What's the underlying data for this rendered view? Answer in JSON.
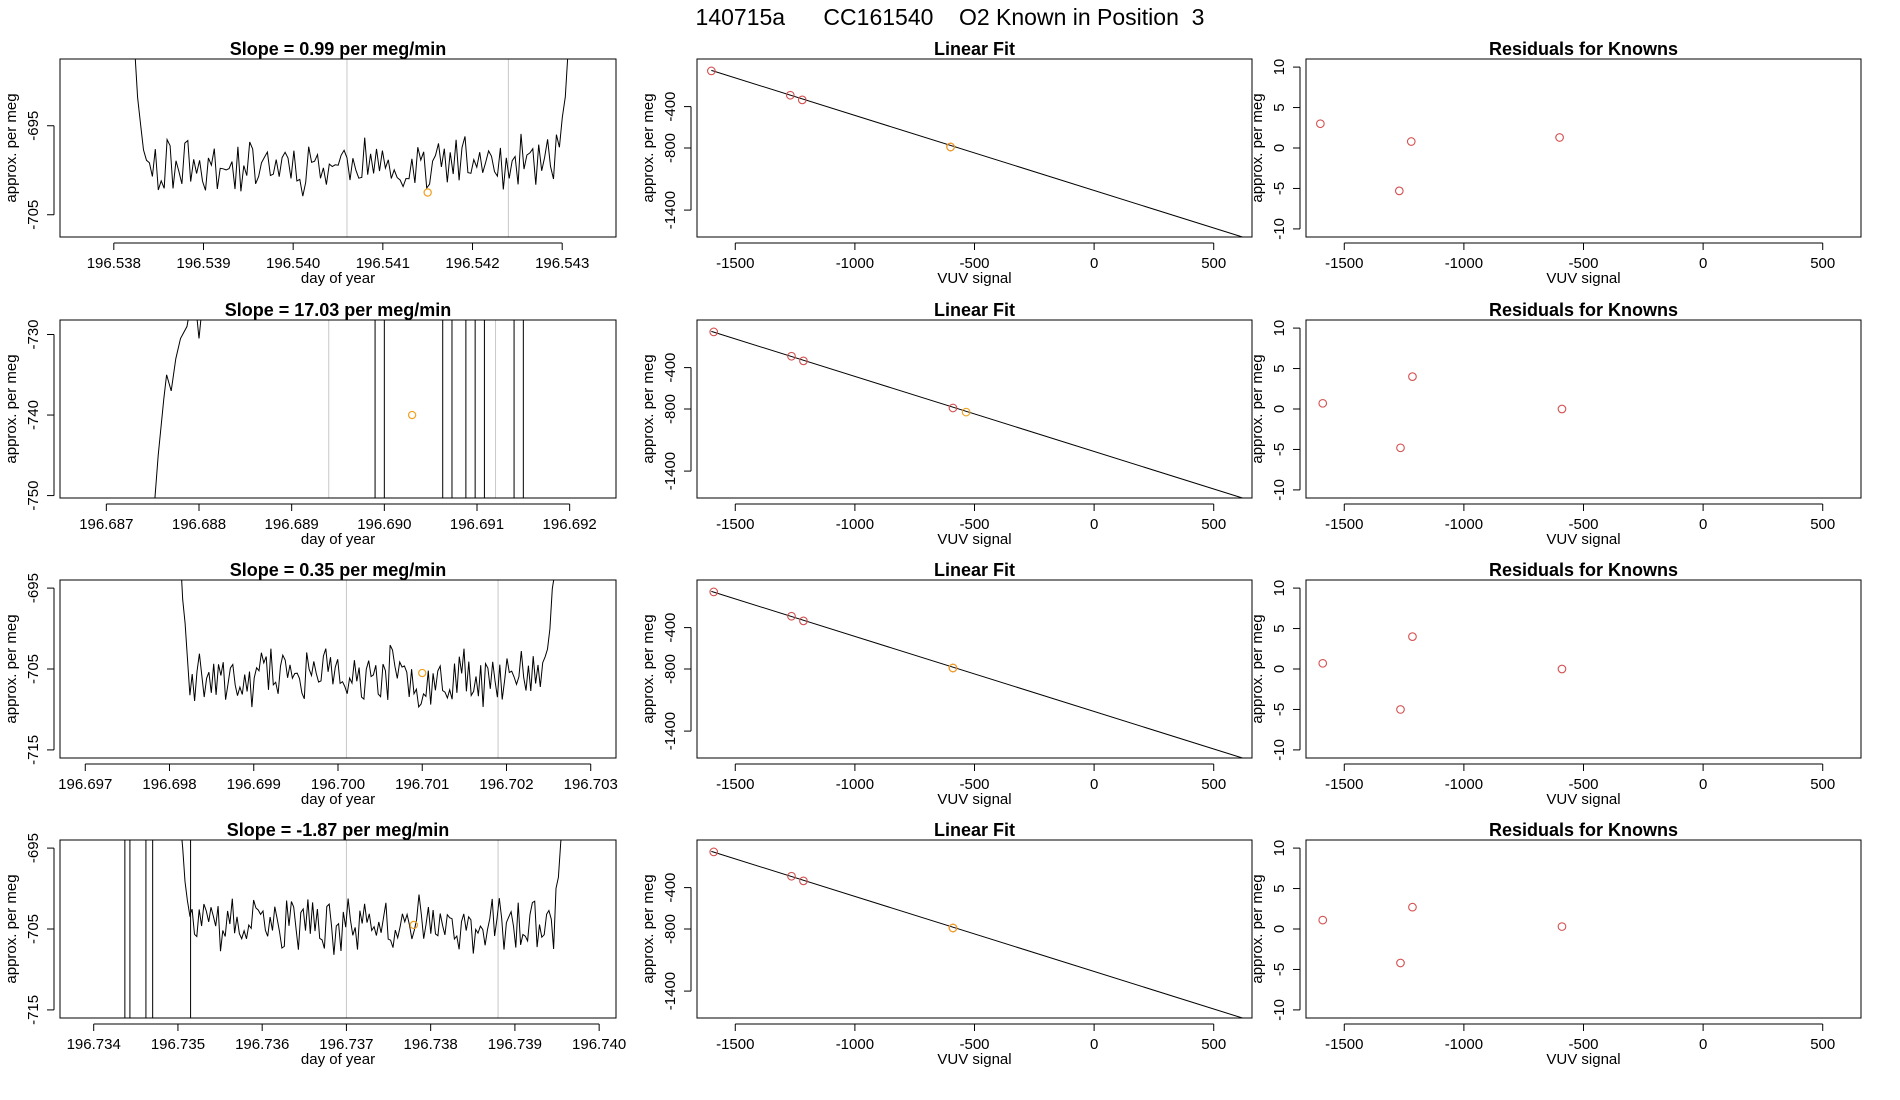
{
  "figure": {
    "title": "140715a      CC161540    O2 Known in Position  3",
    "colors": {
      "line": "#000000",
      "vline": "#c8c8c8",
      "known": "#d45050",
      "sample": "#f0a020",
      "frame": "#000000"
    }
  },
  "chart_data": [
    {
      "type": "line",
      "row": 0,
      "col": 0,
      "title": "Slope =  0.99  per meg/min",
      "xlabel": "day of year",
      "ylabel": "approx. per meg",
      "xlim": [
        196.5374,
        196.5436
      ],
      "ylim": [
        -707.5,
        -687.5
      ],
      "xticks": [
        196.538,
        196.539,
        196.54,
        196.541,
        196.542,
        196.543
      ],
      "xticklabels": [
        "196.538",
        "196.539",
        "196.540",
        "196.541",
        "196.542",
        "196.543"
      ],
      "yticks": [
        -695,
        -705
      ],
      "yticklabels": [
        "-695",
        "-705"
      ],
      "series": [
        {
          "name": "trace",
          "t0": 196.5382,
          "t1": 196.5431,
          "points": 150,
          "mean": -699.4,
          "amp": 2.6,
          "seed": 11,
          "spike_count": 0,
          "edge_rise": true
        }
      ],
      "vlines": [
        196.5406,
        196.5424
      ],
      "sample_point": [
        196.5415,
        -702.5
      ]
    },
    {
      "type": "scatter",
      "row": 0,
      "col": 1,
      "title": "Linear Fit",
      "xlabel": "VUV signal",
      "ylabel": "approx. per meg",
      "xlim": [
        -1660,
        660
      ],
      "ylim": [
        -1660,
        60
      ],
      "xticks": [
        -1500,
        -1000,
        -500,
        0,
        500
      ],
      "xticklabels": [
        "-1500",
        "-1000",
        "-500",
        "0",
        "500"
      ],
      "yticks": [
        -400,
        -800,
        -1400
      ],
      "yticklabels": [
        "-400",
        "-800",
        "-1400"
      ],
      "fit_line": {
        "x": [
          -1600,
          620
        ],
        "y": [
          -50,
          -1660
        ]
      },
      "knowns": [
        {
          "x": -1600,
          "y": -55
        },
        {
          "x": -1270,
          "y": -290
        },
        {
          "x": -1220,
          "y": -335
        },
        {
          "x": -600,
          "y": -790
        }
      ],
      "sample": {
        "x": -600,
        "y": -790
      }
    },
    {
      "type": "scatter",
      "row": 0,
      "col": 2,
      "title": "Residuals for Knowns",
      "xlabel": "VUV signal",
      "ylabel": "approx. per meg",
      "xlim": [
        -1660,
        660
      ],
      "ylim": [
        -11,
        11
      ],
      "xticks": [
        -1500,
        -1000,
        -500,
        0,
        500
      ],
      "xticklabels": [
        "-1500",
        "-1000",
        "-500",
        "0",
        "500"
      ],
      "yticks": [
        10,
        5,
        0,
        -5,
        -10
      ],
      "yticklabels": [
        "10",
        "5",
        "0",
        "-5",
        "-10"
      ],
      "points": [
        {
          "x": -1600,
          "y": 3.0
        },
        {
          "x": -1270,
          "y": -5.3
        },
        {
          "x": -1220,
          "y": 0.8
        },
        {
          "x": -600,
          "y": 1.3
        }
      ]
    },
    {
      "type": "line",
      "row": 1,
      "col": 0,
      "title": "Slope =  17.03  per meg/min",
      "xlabel": "day of year",
      "ylabel": "approx. per meg",
      "xlim": [
        196.6865,
        196.6925
      ],
      "ylim": [
        -750.3,
        -728.2
      ],
      "xticks": [
        196.687,
        196.688,
        196.689,
        196.69,
        196.691,
        196.692
      ],
      "xticklabels": [
        "196.687",
        "196.688",
        "196.689",
        "196.690",
        "196.691",
        "196.692"
      ],
      "yticks": [
        -730,
        -740,
        -750
      ],
      "yticklabels": [
        "-730",
        "-740",
        "-750"
      ],
      "segments": [
        [
          [
            196.68752,
            -751
          ],
          [
            196.68756,
            -745
          ],
          [
            196.68762,
            -738
          ],
          [
            196.68765,
            -735
          ],
          [
            196.6877,
            -737
          ],
          [
            196.68775,
            -733
          ],
          [
            196.6878,
            -730.5
          ],
          [
            196.68787,
            -729
          ],
          [
            196.6879,
            -727
          ]
        ],
        [
          [
            196.68797,
            -727
          ],
          [
            196.688,
            -730.5
          ],
          [
            196.68803,
            -727
          ]
        ]
      ],
      "spikes": [
        196.6899,
        196.69,
        196.69063,
        196.69073,
        196.69088,
        196.69098,
        196.69108,
        196.6914,
        196.6915
      ],
      "spike_to": [
        -751,
        -727
      ],
      "vlines": [
        196.6894,
        196.6912
      ],
      "sample_point": [
        196.6903,
        -740.0
      ]
    },
    {
      "type": "scatter",
      "row": 1,
      "col": 1,
      "title": "Linear Fit",
      "xlabel": "VUV signal",
      "ylabel": "approx. per meg",
      "xlim": [
        -1660,
        660
      ],
      "ylim": [
        -1660,
        60
      ],
      "xticks": [
        -1500,
        -1000,
        -500,
        0,
        500
      ],
      "xticklabels": [
        "-1500",
        "-1000",
        "-500",
        "0",
        "500"
      ],
      "yticks": [
        -400,
        -800,
        -1400
      ],
      "yticklabels": [
        "-400",
        "-800",
        "-1400"
      ],
      "fit_line": {
        "x": [
          -1600,
          620
        ],
        "y": [
          -50,
          -1660
        ]
      },
      "knowns": [
        {
          "x": -1590,
          "y": -55
        },
        {
          "x": -1265,
          "y": -290
        },
        {
          "x": -1215,
          "y": -335
        },
        {
          "x": -590,
          "y": -790
        }
      ],
      "sample": {
        "x": -535,
        "y": -830
      }
    },
    {
      "type": "scatter",
      "row": 1,
      "col": 2,
      "title": "Residuals for Knowns",
      "xlabel": "VUV signal",
      "ylabel": "approx. per meg",
      "xlim": [
        -1660,
        660
      ],
      "ylim": [
        -11,
        11
      ],
      "xticks": [
        -1500,
        -1000,
        -500,
        0,
        500
      ],
      "xticklabels": [
        "-1500",
        "-1000",
        "-500",
        "0",
        "500"
      ],
      "yticks": [
        10,
        5,
        0,
        -5,
        -10
      ],
      "yticklabels": [
        "10",
        "5",
        "0",
        "-5",
        "-10"
      ],
      "points": [
        {
          "x": -1590,
          "y": 0.7
        },
        {
          "x": -1265,
          "y": -4.8
        },
        {
          "x": -1215,
          "y": 4.0
        },
        {
          "x": -590,
          "y": 0.0
        }
      ]
    },
    {
      "type": "line",
      "row": 2,
      "col": 0,
      "title": "Slope =  0.35  per meg/min",
      "xlabel": "day of year",
      "ylabel": "approx. per meg",
      "xlim": [
        196.6967,
        196.7033
      ],
      "ylim": [
        -716,
        -694
      ],
      "xticks": [
        196.697,
        196.698,
        196.699,
        196.7,
        196.701,
        196.702,
        196.703
      ],
      "xticklabels": [
        "196.697",
        "196.698",
        "196.699",
        "196.700",
        "196.701",
        "196.702",
        "196.703"
      ],
      "yticks": [
        -695,
        -705,
        -715
      ],
      "yticklabels": [
        "-695",
        "-705",
        "-715"
      ],
      "series": [
        {
          "name": "trace",
          "t0": 196.6981,
          "t1": 196.7026,
          "points": 160,
          "mean": -706.0,
          "amp": 3.0,
          "seed": 23,
          "spike_count": 0,
          "edge_rise": true
        }
      ],
      "vlines": [
        196.7001,
        196.7019
      ],
      "sample_point": [
        196.701,
        -705.5
      ]
    },
    {
      "type": "scatter",
      "row": 2,
      "col": 1,
      "title": "Linear Fit",
      "xlabel": "VUV signal",
      "ylabel": "approx. per meg",
      "xlim": [
        -1660,
        660
      ],
      "ylim": [
        -1660,
        60
      ],
      "xticks": [
        -1500,
        -1000,
        -500,
        0,
        500
      ],
      "xticklabels": [
        "-1500",
        "-1000",
        "-500",
        "0",
        "500"
      ],
      "yticks": [
        -400,
        -800,
        -1400
      ],
      "yticklabels": [
        "-400",
        "-800",
        "-1400"
      ],
      "fit_line": {
        "x": [
          -1600,
          620
        ],
        "y": [
          -50,
          -1660
        ]
      },
      "knowns": [
        {
          "x": -1590,
          "y": -55
        },
        {
          "x": -1265,
          "y": -290
        },
        {
          "x": -1215,
          "y": -335
        },
        {
          "x": -590,
          "y": -790
        }
      ],
      "sample": {
        "x": -590,
        "y": -790
      }
    },
    {
      "type": "scatter",
      "row": 2,
      "col": 2,
      "title": "Residuals for Knowns",
      "xlabel": "VUV signal",
      "ylabel": "approx. per meg",
      "xlim": [
        -1660,
        660
      ],
      "ylim": [
        -11,
        11
      ],
      "xticks": [
        -1500,
        -1000,
        -500,
        0,
        500
      ],
      "xticklabels": [
        "-1500",
        "-1000",
        "-500",
        "0",
        "500"
      ],
      "yticks": [
        10,
        5,
        0,
        -5,
        -10
      ],
      "yticklabels": [
        "10",
        "5",
        "0",
        "-5",
        "-10"
      ],
      "points": [
        {
          "x": -1590,
          "y": 0.7
        },
        {
          "x": -1265,
          "y": -5.0
        },
        {
          "x": -1215,
          "y": 4.0
        },
        {
          "x": -590,
          "y": 0.0
        }
      ]
    },
    {
      "type": "line",
      "row": 3,
      "col": 0,
      "title": "Slope =  -1.87  per meg/min",
      "xlabel": "day of year",
      "ylabel": "approx. per meg",
      "xlim": [
        196.7336,
        196.7402
      ],
      "ylim": [
        -716,
        -694
      ],
      "xticks": [
        196.734,
        196.735,
        196.736,
        196.737,
        196.738,
        196.739,
        196.74
      ],
      "xticklabels": [
        "196.734",
        "196.735",
        "196.736",
        "196.737",
        "196.738",
        "196.739",
        "196.740"
      ],
      "yticks": [
        -695,
        -705,
        -715
      ],
      "yticklabels": [
        "-695",
        "-705",
        "-715"
      ],
      "series": [
        {
          "name": "trace",
          "t0": 196.735,
          "t1": 196.7396,
          "points": 165,
          "mean": -704.5,
          "amp": 2.8,
          "seed": 37,
          "spike_count": 0,
          "edge_rise": true
        }
      ],
      "spikes": [
        196.73437,
        196.73443,
        196.73462,
        196.7347,
        196.73515
      ],
      "spike_to": [
        -717,
        -693
      ],
      "vlines": [
        196.737,
        196.7388
      ],
      "sample_point": [
        196.7378,
        -704.5
      ]
    },
    {
      "type": "scatter",
      "row": 3,
      "col": 1,
      "title": "Linear Fit",
      "xlabel": "VUV signal",
      "ylabel": "approx. per meg",
      "xlim": [
        -1660,
        660
      ],
      "ylim": [
        -1660,
        60
      ],
      "xticks": [
        -1500,
        -1000,
        -500,
        0,
        500
      ],
      "xticklabels": [
        "-1500",
        "-1000",
        "-500",
        "0",
        "500"
      ],
      "yticks": [
        -400,
        -800,
        -1400
      ],
      "yticklabels": [
        "-400",
        "-800",
        "-1400"
      ],
      "fit_line": {
        "x": [
          -1600,
          620
        ],
        "y": [
          -50,
          -1660
        ]
      },
      "knowns": [
        {
          "x": -1590,
          "y": -55
        },
        {
          "x": -1265,
          "y": -290
        },
        {
          "x": -1215,
          "y": -335
        },
        {
          "x": -590,
          "y": -790
        }
      ],
      "sample": {
        "x": -590,
        "y": -790
      }
    },
    {
      "type": "scatter",
      "row": 3,
      "col": 2,
      "title": "Residuals for Knowns",
      "xlabel": "VUV signal",
      "ylabel": "approx. per meg",
      "xlim": [
        -1660,
        660
      ],
      "ylim": [
        -11,
        11
      ],
      "xticks": [
        -1500,
        -1000,
        -500,
        0,
        500
      ],
      "xticklabels": [
        "-1500",
        "-1000",
        "-500",
        "0",
        "500"
      ],
      "yticks": [
        10,
        5,
        0,
        -5,
        -10
      ],
      "yticklabels": [
        "10",
        "5",
        "0",
        "-5",
        "-10"
      ],
      "points": [
        {
          "x": -1590,
          "y": 1.1
        },
        {
          "x": -1265,
          "y": -4.2
        },
        {
          "x": -1215,
          "y": 2.7
        },
        {
          "x": -590,
          "y": 0.3
        }
      ]
    }
  ]
}
